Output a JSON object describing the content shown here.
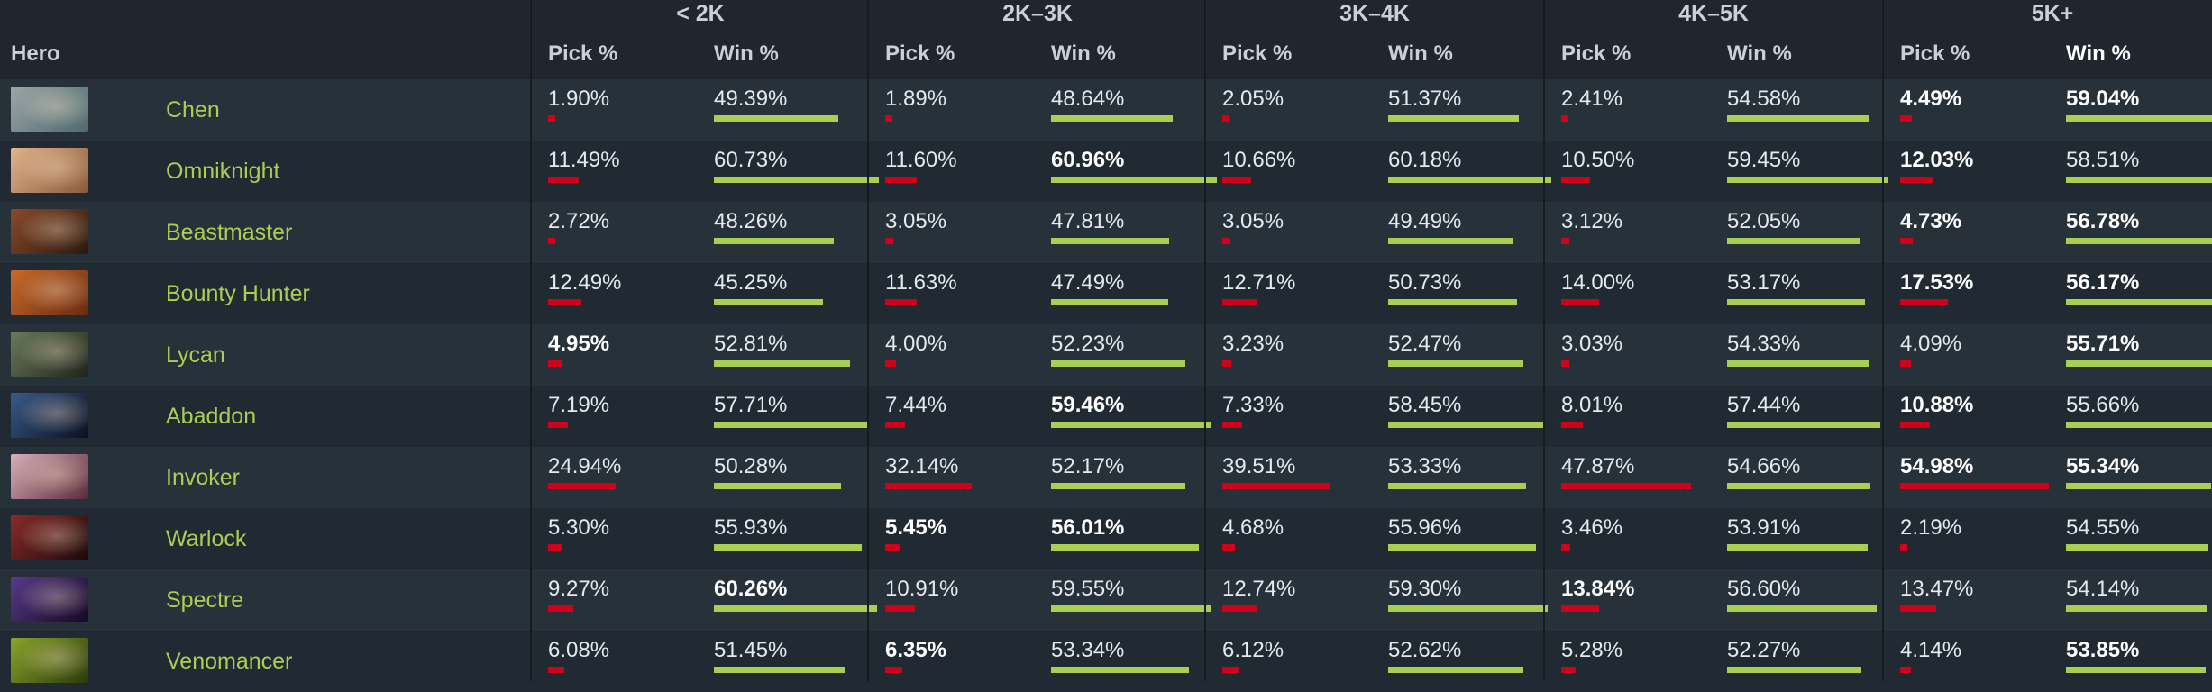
{
  "header": {
    "hero_label": "Hero",
    "tiers": [
      "< 2K",
      "2K–3K",
      "3K–4K",
      "4K–5K",
      "5K+"
    ],
    "pick_label": "Pick %",
    "win_label": "Win %"
  },
  "colors": {
    "pick_bar": "#d0021b",
    "win_bar": "#a8cf54",
    "hero_name": "#a8cf54"
  },
  "rows": [
    {
      "hero": "Chen",
      "portrait": [
        "#9aa6a8",
        "#4f6a6e"
      ],
      "cells": [
        [
          "1.90%",
          "49.39%"
        ],
        [
          "1.89%",
          "48.64%"
        ],
        [
          "2.05%",
          "51.37%"
        ],
        [
          "2.41%",
          "54.58%"
        ],
        [
          "4.49%",
          "59.04%"
        ]
      ],
      "bold": [
        [
          false,
          false
        ],
        [
          false,
          false
        ],
        [
          false,
          false
        ],
        [
          false,
          false
        ],
        [
          true,
          true
        ]
      ]
    },
    {
      "hero": "Omniknight",
      "portrait": [
        "#e2b48c",
        "#8a5a3a"
      ],
      "cells": [
        [
          "11.49%",
          "60.73%"
        ],
        [
          "11.60%",
          "60.96%"
        ],
        [
          "10.66%",
          "60.18%"
        ],
        [
          "10.50%",
          "59.45%"
        ],
        [
          "12.03%",
          "58.51%"
        ]
      ],
      "bold": [
        [
          false,
          false
        ],
        [
          false,
          true
        ],
        [
          false,
          false
        ],
        [
          false,
          false
        ],
        [
          true,
          false
        ]
      ]
    },
    {
      "hero": "Beastmaster",
      "portrait": [
        "#8a4a2a",
        "#2a1a10"
      ],
      "cells": [
        [
          "2.72%",
          "48.26%"
        ],
        [
          "3.05%",
          "47.81%"
        ],
        [
          "3.05%",
          "49.49%"
        ],
        [
          "3.12%",
          "52.05%"
        ],
        [
          "4.73%",
          "56.78%"
        ]
      ],
      "bold": [
        [
          false,
          false
        ],
        [
          false,
          false
        ],
        [
          false,
          false
        ],
        [
          false,
          false
        ],
        [
          true,
          true
        ]
      ]
    },
    {
      "hero": "Bounty Hunter",
      "portrait": [
        "#c86a2a",
        "#6a2a10"
      ],
      "cells": [
        [
          "12.49%",
          "45.25%"
        ],
        [
          "11.63%",
          "47.49%"
        ],
        [
          "12.71%",
          "50.73%"
        ],
        [
          "14.00%",
          "53.17%"
        ],
        [
          "17.53%",
          "56.17%"
        ]
      ],
      "bold": [
        [
          false,
          false
        ],
        [
          false,
          false
        ],
        [
          false,
          false
        ],
        [
          false,
          false
        ],
        [
          true,
          true
        ]
      ]
    },
    {
      "hero": "Lycan",
      "portrait": [
        "#6a7a5a",
        "#20241a"
      ],
      "cells": [
        [
          "4.95%",
          "52.81%"
        ],
        [
          "4.00%",
          "52.23%"
        ],
        [
          "3.23%",
          "52.47%"
        ],
        [
          "3.03%",
          "54.33%"
        ],
        [
          "4.09%",
          "55.71%"
        ]
      ],
      "bold": [
        [
          true,
          false
        ],
        [
          false,
          false
        ],
        [
          false,
          false
        ],
        [
          false,
          false
        ],
        [
          false,
          true
        ]
      ]
    },
    {
      "hero": "Abaddon",
      "portrait": [
        "#3a5a8a",
        "#0a1020"
      ],
      "cells": [
        [
          "7.19%",
          "57.71%"
        ],
        [
          "7.44%",
          "59.46%"
        ],
        [
          "7.33%",
          "58.45%"
        ],
        [
          "8.01%",
          "57.44%"
        ],
        [
          "10.88%",
          "55.66%"
        ]
      ],
      "bold": [
        [
          false,
          false
        ],
        [
          false,
          true
        ],
        [
          false,
          false
        ],
        [
          false,
          false
        ],
        [
          true,
          false
        ]
      ]
    },
    {
      "hero": "Invoker",
      "portrait": [
        "#d8b0b8",
        "#5a2a3a"
      ],
      "cells": [
        [
          "24.94%",
          "50.28%"
        ],
        [
          "32.14%",
          "52.17%"
        ],
        [
          "39.51%",
          "53.33%"
        ],
        [
          "47.87%",
          "54.66%"
        ],
        [
          "54.98%",
          "55.34%"
        ]
      ],
      "bold": [
        [
          false,
          false
        ],
        [
          false,
          false
        ],
        [
          false,
          false
        ],
        [
          false,
          false
        ],
        [
          true,
          true
        ]
      ]
    },
    {
      "hero": "Warlock",
      "portrait": [
        "#8a2a2a",
        "#1a0a0a"
      ],
      "cells": [
        [
          "5.30%",
          "55.93%"
        ],
        [
          "5.45%",
          "56.01%"
        ],
        [
          "4.68%",
          "55.96%"
        ],
        [
          "3.46%",
          "53.91%"
        ],
        [
          "2.19%",
          "54.55%"
        ]
      ],
      "bold": [
        [
          false,
          false
        ],
        [
          true,
          true
        ],
        [
          false,
          false
        ],
        [
          false,
          false
        ],
        [
          false,
          false
        ]
      ]
    },
    {
      "hero": "Spectre",
      "portrait": [
        "#5a3a8a",
        "#140a24"
      ],
      "cells": [
        [
          "9.27%",
          "60.26%"
        ],
        [
          "10.91%",
          "59.55%"
        ],
        [
          "12.74%",
          "59.30%"
        ],
        [
          "13.84%",
          "56.60%"
        ],
        [
          "13.47%",
          "54.14%"
        ]
      ],
      "bold": [
        [
          false,
          true
        ],
        [
          false,
          false
        ],
        [
          false,
          false
        ],
        [
          true,
          false
        ],
        [
          false,
          false
        ]
      ]
    },
    {
      "hero": "Venomancer",
      "portrait": [
        "#8aa42a",
        "#2a3a0a"
      ],
      "cells": [
        [
          "6.08%",
          "51.45%"
        ],
        [
          "6.35%",
          "53.34%"
        ],
        [
          "6.12%",
          "52.62%"
        ],
        [
          "5.28%",
          "52.27%"
        ],
        [
          "4.14%",
          "53.85%"
        ]
      ],
      "bold": [
        [
          false,
          false
        ],
        [
          true,
          false
        ],
        [
          false,
          false
        ],
        [
          false,
          false
        ],
        [
          false,
          true
        ]
      ]
    }
  ]
}
